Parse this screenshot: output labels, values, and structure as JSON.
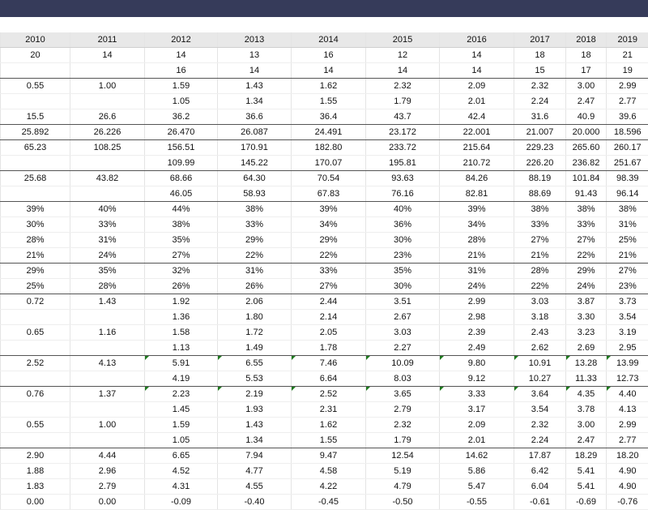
{
  "header": [
    "2010",
    "2011",
    "2012",
    "2013",
    "2014",
    "2015",
    "2016",
    "2017",
    "2018",
    "2019"
  ],
  "rows": [
    {
      "cells": [
        "20",
        "14",
        "14",
        "13",
        "16",
        "12",
        "14",
        "18",
        "18",
        "21"
      ]
    },
    {
      "cells": [
        "",
        "",
        "16",
        "14",
        "14",
        "14",
        "14",
        "15",
        "17",
        "19"
      ],
      "sep": true
    },
    {
      "cells": [
        "0.55",
        "1.00",
        "1.59",
        "1.43",
        "1.62",
        "2.32",
        "2.09",
        "2.32",
        "3.00",
        "2.99"
      ]
    },
    {
      "cells": [
        "",
        "",
        "1.05",
        "1.34",
        "1.55",
        "1.79",
        "2.01",
        "2.24",
        "2.47",
        "2.77"
      ]
    },
    {
      "cells": [
        "15.5",
        "26.6",
        "36.2",
        "36.6",
        "36.4",
        "43.7",
        "42.4",
        "31.6",
        "40.9",
        "39.6"
      ],
      "sep": true
    },
    {
      "cells": [
        "25.892",
        "26.226",
        "26.470",
        "26.087",
        "24.491",
        "23.172",
        "22.001",
        "21.007",
        "20.000",
        "18.596"
      ],
      "sep": true
    },
    {
      "cells": [
        "65.23",
        "108.25",
        "156.51",
        "170.91",
        "182.80",
        "233.72",
        "215.64",
        "229.23",
        "265.60",
        "260.17"
      ]
    },
    {
      "cells": [
        "",
        "",
        "109.99",
        "145.22",
        "170.07",
        "195.81",
        "210.72",
        "226.20",
        "236.82",
        "251.67"
      ],
      "sep": true
    },
    {
      "cells": [
        "25.68",
        "43.82",
        "68.66",
        "64.30",
        "70.54",
        "93.63",
        "84.26",
        "88.19",
        "101.84",
        "98.39"
      ]
    },
    {
      "cells": [
        "",
        "",
        "46.05",
        "58.93",
        "67.83",
        "76.16",
        "82.81",
        "88.69",
        "91.43",
        "96.14"
      ],
      "sep": true
    },
    {
      "cells": [
        "39%",
        "40%",
        "44%",
        "38%",
        "39%",
        "40%",
        "39%",
        "38%",
        "38%",
        "38%"
      ]
    },
    {
      "cells": [
        "30%",
        "33%",
        "38%",
        "33%",
        "34%",
        "36%",
        "34%",
        "33%",
        "33%",
        "31%"
      ]
    },
    {
      "cells": [
        "28%",
        "31%",
        "35%",
        "29%",
        "29%",
        "30%",
        "28%",
        "27%",
        "27%",
        "25%"
      ]
    },
    {
      "cells": [
        "21%",
        "24%",
        "27%",
        "22%",
        "22%",
        "23%",
        "21%",
        "21%",
        "22%",
        "21%"
      ],
      "sep": true
    },
    {
      "cells": [
        "29%",
        "35%",
        "32%",
        "31%",
        "33%",
        "35%",
        "31%",
        "28%",
        "29%",
        "27%"
      ]
    },
    {
      "cells": [
        "25%",
        "28%",
        "26%",
        "26%",
        "27%",
        "30%",
        "24%",
        "22%",
        "24%",
        "23%"
      ],
      "sep": true
    },
    {
      "cells": [
        "0.72",
        "1.43",
        "1.92",
        "2.06",
        "2.44",
        "3.51",
        "2.99",
        "3.03",
        "3.87",
        "3.73"
      ]
    },
    {
      "cells": [
        "",
        "",
        "1.36",
        "1.80",
        "2.14",
        "2.67",
        "2.98",
        "3.18",
        "3.30",
        "3.54"
      ]
    },
    {
      "cells": [
        "0.65",
        "1.16",
        "1.58",
        "1.72",
        "2.05",
        "3.03",
        "2.39",
        "2.43",
        "3.23",
        "3.19"
      ]
    },
    {
      "cells": [
        "",
        "",
        "1.13",
        "1.49",
        "1.78",
        "2.27",
        "2.49",
        "2.62",
        "2.69",
        "2.95"
      ],
      "sep": true
    },
    {
      "cells": [
        "2.52",
        "4.13",
        "5.91",
        "6.55",
        "7.46",
        "10.09",
        "9.80",
        "10.91",
        "13.28",
        "13.99"
      ],
      "flags": [
        2,
        3,
        4,
        5,
        6,
        7,
        8,
        9
      ]
    },
    {
      "cells": [
        "",
        "",
        "4.19",
        "5.53",
        "6.64",
        "8.03",
        "9.12",
        "10.27",
        "11.33",
        "12.73"
      ],
      "sep": true
    },
    {
      "cells": [
        "0.76",
        "1.37",
        "2.23",
        "2.19",
        "2.52",
        "3.65",
        "3.33",
        "3.64",
        "4.35",
        "4.40"
      ],
      "flags": [
        2,
        3,
        4,
        5,
        6,
        7,
        8,
        9
      ]
    },
    {
      "cells": [
        "",
        "",
        "1.45",
        "1.93",
        "2.31",
        "2.79",
        "3.17",
        "3.54",
        "3.78",
        "4.13"
      ]
    },
    {
      "cells": [
        "0.55",
        "1.00",
        "1.59",
        "1.43",
        "1.62",
        "2.32",
        "2.09",
        "2.32",
        "3.00",
        "2.99"
      ]
    },
    {
      "cells": [
        "",
        "",
        "1.05",
        "1.34",
        "1.55",
        "1.79",
        "2.01",
        "2.24",
        "2.47",
        "2.77"
      ],
      "sep": true
    },
    {
      "cells": [
        "2.90",
        "4.44",
        "6.65",
        "7.94",
        "9.47",
        "12.54",
        "14.62",
        "17.87",
        "18.29",
        "18.20"
      ]
    },
    {
      "cells": [
        "1.88",
        "2.96",
        "4.52",
        "4.77",
        "4.58",
        "5.19",
        "5.86",
        "6.42",
        "5.41",
        "4.90"
      ]
    },
    {
      "cells": [
        "1.83",
        "2.79",
        "4.31",
        "4.55",
        "4.22",
        "4.79",
        "5.47",
        "6.04",
        "5.41",
        "4.90"
      ]
    },
    {
      "cells": [
        "0.00",
        "0.00",
        "-0.09",
        "-0.40",
        "-0.45",
        "-0.50",
        "-0.55",
        "-0.61",
        "-0.69",
        "-0.76"
      ]
    }
  ]
}
